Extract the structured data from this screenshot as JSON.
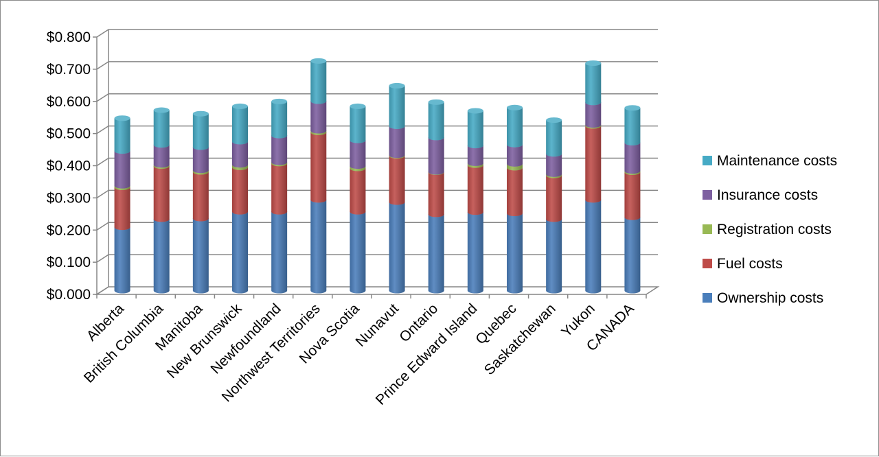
{
  "chart_data": {
    "type": "bar",
    "stacked": true,
    "categories": [
      "Alberta",
      "British Columbia",
      "Manitoba",
      "New Brunswick",
      "Newfoundland",
      "Northwest Territories",
      "Nova Scotia",
      "Nunavut",
      "Ontario",
      "Prince Edward Island",
      "Quebec",
      "Saskatchewan",
      "Yukon",
      "CANADA"
    ],
    "series": [
      {
        "name": "Ownership costs",
        "color": "#4a7ebb",
        "values": [
          0.197,
          0.222,
          0.224,
          0.245,
          0.245,
          0.282,
          0.245,
          0.275,
          0.237,
          0.244,
          0.24,
          0.222,
          0.282,
          0.228
        ]
      },
      {
        "name": "Fuel costs",
        "color": "#be4b48",
        "values": [
          0.124,
          0.165,
          0.145,
          0.138,
          0.15,
          0.21,
          0.135,
          0.144,
          0.131,
          0.146,
          0.142,
          0.136,
          0.23,
          0.14
        ]
      },
      {
        "name": "Registration costs",
        "color": "#98b954",
        "values": [
          0.005,
          0.004,
          0.005,
          0.008,
          0.004,
          0.005,
          0.007,
          0.002,
          0.001,
          0.006,
          0.012,
          0.004,
          0.003,
          0.004
        ]
      },
      {
        "name": "Insurance costs",
        "color": "#7d5fa0",
        "values": [
          0.108,
          0.062,
          0.072,
          0.072,
          0.083,
          0.092,
          0.08,
          0.09,
          0.107,
          0.055,
          0.06,
          0.063,
          0.07,
          0.088
        ]
      },
      {
        "name": "Maintenance costs",
        "color": "#46aac5",
        "values": [
          0.102,
          0.108,
          0.104,
          0.11,
          0.106,
          0.125,
          0.106,
          0.126,
          0.11,
          0.108,
          0.115,
          0.105,
          0.122,
          0.108
        ]
      }
    ],
    "y_ticks": [
      "$0.000",
      "$0.100",
      "$0.200",
      "$0.300",
      "$0.400",
      "$0.500",
      "$0.600",
      "$0.700",
      "$0.800"
    ],
    "ylim": [
      0,
      0.8
    ],
    "legend_order": [
      "Maintenance costs",
      "Insurance costs",
      "Registration costs",
      "Fuel costs",
      "Ownership costs"
    ],
    "grid": true,
    "legend_position": "right",
    "title": "",
    "xlabel": "",
    "ylabel": ""
  }
}
